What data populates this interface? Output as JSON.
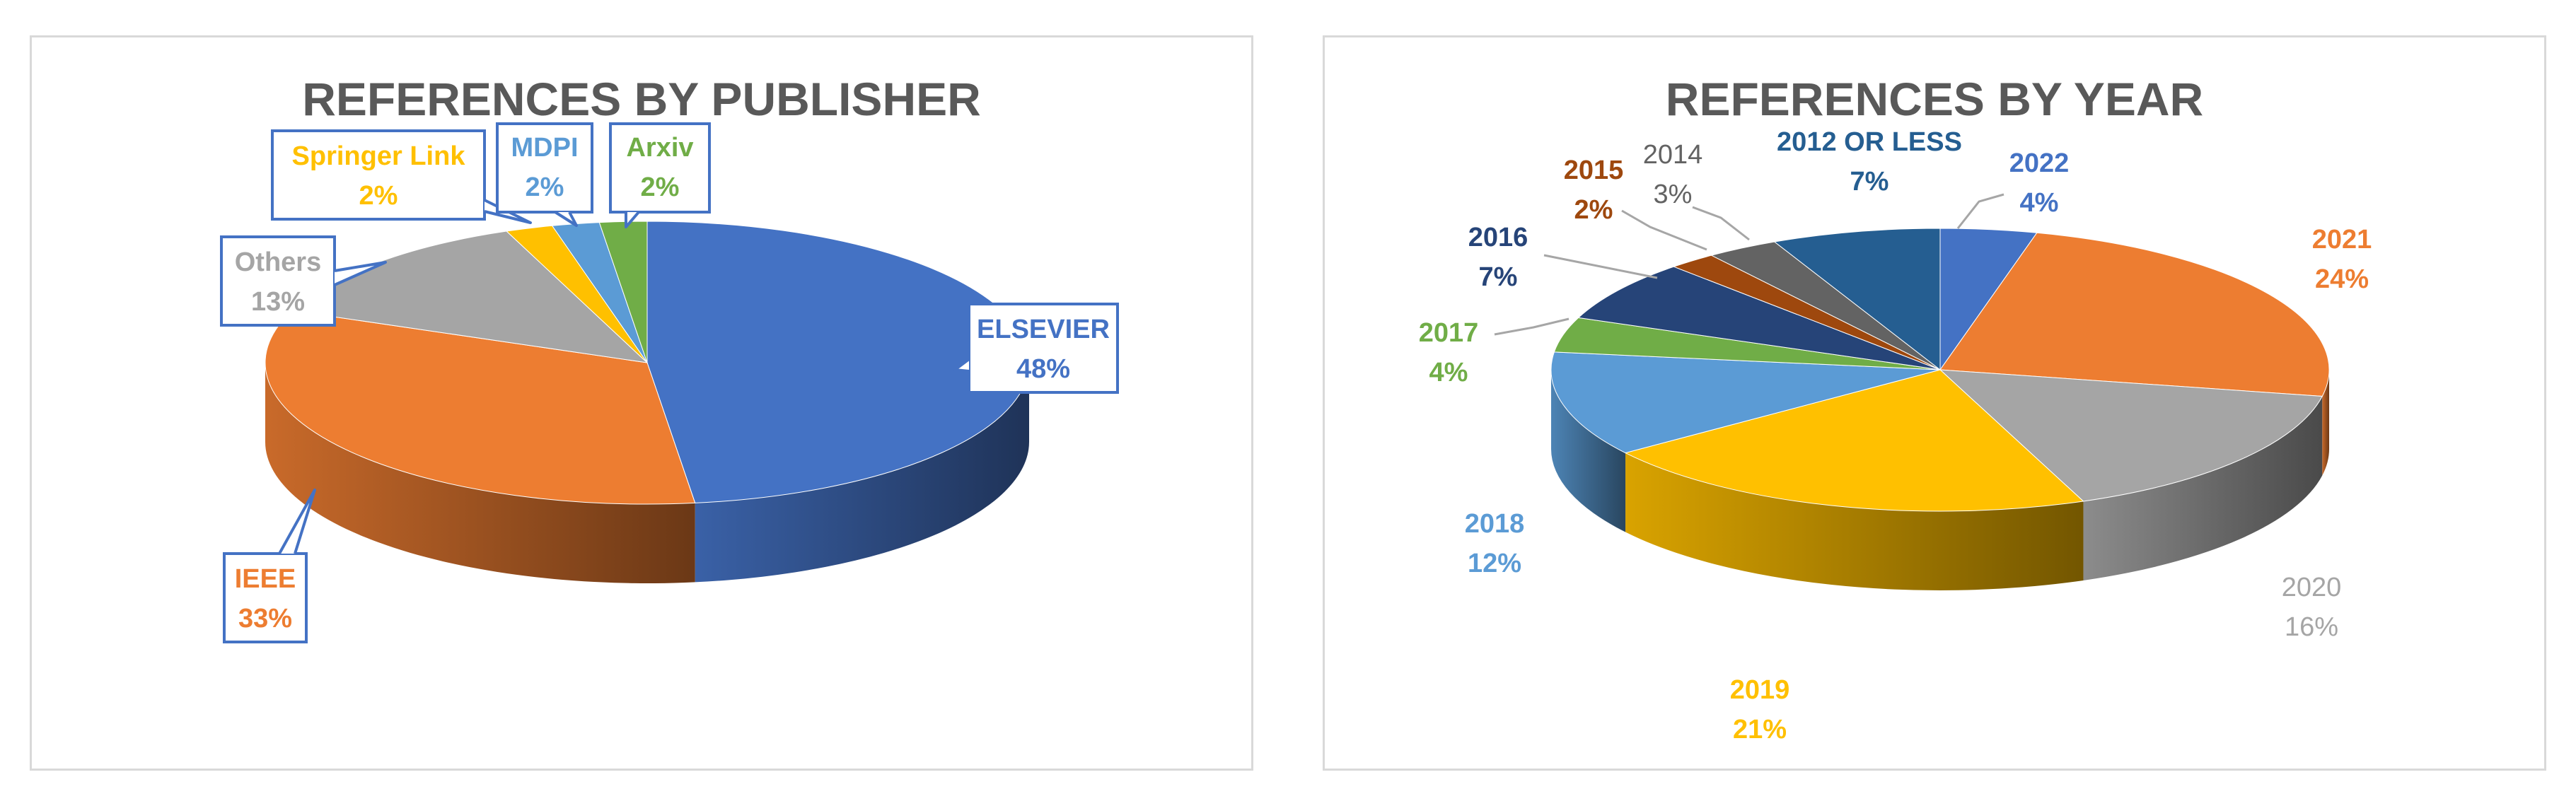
{
  "chart_data": [
    {
      "type": "pie",
      "title": "REFERENCES BY PUBLISHER",
      "categories": [
        "ELSEVIER",
        "IEEE",
        "Others",
        "Springer Link",
        "MDPI",
        "Arxiv"
      ],
      "values": [
        48,
        33,
        13,
        2,
        2,
        2
      ],
      "value_labels": [
        "48%",
        "33%",
        "13%",
        "2%",
        "2%",
        "2%"
      ],
      "colors": [
        "#4472c4",
        "#ed7d31",
        "#a5a5a5",
        "#ffc000",
        "#5b9bd5",
        "#70ad47"
      ],
      "style": "3d",
      "legend": "none",
      "data_labels": "callouts"
    },
    {
      "type": "pie",
      "title": "REFERENCES BY YEAR",
      "categories": [
        "2022",
        "2021",
        "2020",
        "2019",
        "2018",
        "2017",
        "2016",
        "2015",
        "2014",
        "2012 OR LESS"
      ],
      "values": [
        4,
        24,
        16,
        21,
        12,
        4,
        7,
        2,
        3,
        7
      ],
      "value_labels": [
        "4%",
        "24%",
        "16%",
        "21%",
        "12%",
        "4%",
        "7%",
        "2%",
        "3%",
        "7%"
      ],
      "colors": [
        "#4472c4",
        "#ed7d31",
        "#a5a5a5",
        "#ffc000",
        "#5b9bd5",
        "#70ad47",
        "#264478",
        "#9e480e",
        "#636363",
        "#255e91"
      ],
      "style": "3d",
      "legend": "none",
      "data_labels": "outside"
    }
  ]
}
